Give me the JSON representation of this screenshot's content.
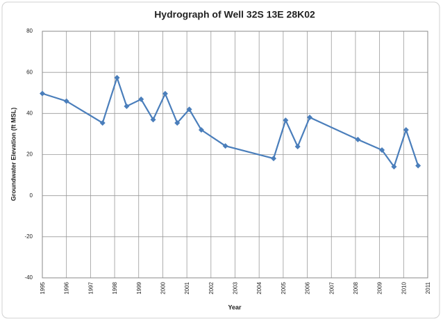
{
  "chart_data": {
    "type": "line",
    "title": "Hydrograph of Well 32S 13E 28K02",
    "x_label": "Year",
    "y_label": "Groundwater Elevation (ft MSL)",
    "x": [
      1995.0,
      1996.0,
      1997.5,
      1998.1,
      1998.5,
      1999.1,
      1999.6,
      2000.1,
      2000.6,
      2001.1,
      2001.6,
      2002.6,
      2004.6,
      2005.1,
      2005.6,
      2006.1,
      2008.1,
      2009.1,
      2009.6,
      2010.1,
      2010.6
    ],
    "series": [
      {
        "color": "#4a7ebb",
        "values": [
          49.7,
          46,
          35.4,
          57.4,
          43.5,
          46.9,
          37,
          49.6,
          35.4,
          42,
          32,
          24.2,
          18.1,
          36.7,
          23.9,
          38.1,
          27.3,
          22.2,
          14.1,
          32,
          14.6
        ]
      }
    ],
    "xlim": [
      1995,
      2011
    ],
    "xticks": [
      1995,
      1996,
      1997,
      1998,
      1999,
      2000,
      2001,
      2002,
      2003,
      2004,
      2005,
      2006,
      2007,
      2008,
      2009,
      2010,
      2011
    ],
    "ylim": [
      -40,
      80
    ],
    "yticks": [
      -40,
      -20,
      0,
      20,
      40,
      60,
      80
    ],
    "grid": true
  }
}
